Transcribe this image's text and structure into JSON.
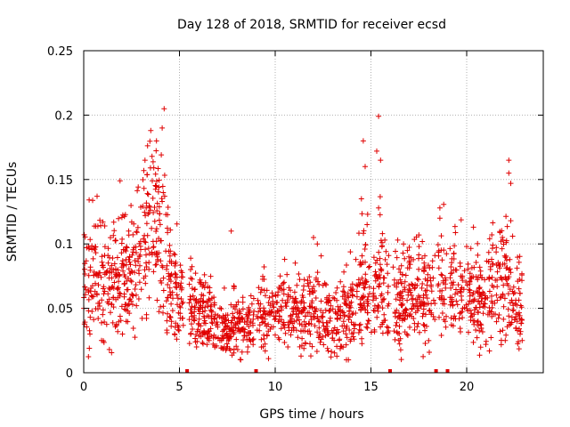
{
  "chart_data": {
    "type": "scatter",
    "title": "Day 128 of 2018, SRMTID for receiver ecsd",
    "xlabel": "GPS time / hours",
    "ylabel": "SRMTID / TECUs",
    "xlim": [
      0,
      24
    ],
    "ylim": [
      0,
      0.25
    ],
    "xticks": [
      0,
      5,
      10,
      15,
      20
    ],
    "xtick_labels": [
      "0",
      "5",
      "10",
      "15",
      "20"
    ],
    "yticks": [
      0,
      0.05,
      0.1,
      0.15,
      0.2,
      0.25
    ],
    "ytick_labels": [
      "0",
      "0.05",
      "0.1",
      "0.15",
      "0.2",
      "0.25"
    ],
    "grid": true,
    "marker": "+",
    "color": "#e00000",
    "point_count_approx": 2000,
    "trend": [
      {
        "x": 0.0,
        "y": 0.065
      },
      {
        "x": 0.5,
        "y": 0.072
      },
      {
        "x": 1.0,
        "y": 0.068
      },
      {
        "x": 1.5,
        "y": 0.075
      },
      {
        "x": 2.0,
        "y": 0.072
      },
      {
        "x": 2.5,
        "y": 0.07
      },
      {
        "x": 3.0,
        "y": 0.09
      },
      {
        "x": 3.5,
        "y": 0.115
      },
      {
        "x": 4.0,
        "y": 0.1
      },
      {
        "x": 4.5,
        "y": 0.065
      },
      {
        "x": 5.0,
        "y": 0.055
      },
      {
        "x": 5.5,
        "y": 0.05
      },
      {
        "x": 6.0,
        "y": 0.048
      },
      {
        "x": 6.5,
        "y": 0.045
      },
      {
        "x": 7.0,
        "y": 0.038
      },
      {
        "x": 7.5,
        "y": 0.032
      },
      {
        "x": 8.0,
        "y": 0.035
      },
      {
        "x": 8.5,
        "y": 0.038
      },
      {
        "x": 9.0,
        "y": 0.042
      },
      {
        "x": 9.5,
        "y": 0.044
      },
      {
        "x": 10.0,
        "y": 0.045
      },
      {
        "x": 10.5,
        "y": 0.048
      },
      {
        "x": 11.0,
        "y": 0.046
      },
      {
        "x": 11.5,
        "y": 0.048
      },
      {
        "x": 12.0,
        "y": 0.047
      },
      {
        "x": 12.5,
        "y": 0.042
      },
      {
        "x": 13.0,
        "y": 0.04
      },
      {
        "x": 13.5,
        "y": 0.042
      },
      {
        "x": 14.0,
        "y": 0.048
      },
      {
        "x": 14.5,
        "y": 0.065
      },
      {
        "x": 15.0,
        "y": 0.062
      },
      {
        "x": 15.5,
        "y": 0.075
      },
      {
        "x": 16.0,
        "y": 0.052
      },
      {
        "x": 16.5,
        "y": 0.052
      },
      {
        "x": 17.0,
        "y": 0.055
      },
      {
        "x": 17.5,
        "y": 0.058
      },
      {
        "x": 18.0,
        "y": 0.055
      },
      {
        "x": 18.5,
        "y": 0.065
      },
      {
        "x": 19.0,
        "y": 0.072
      },
      {
        "x": 19.5,
        "y": 0.062
      },
      {
        "x": 20.0,
        "y": 0.06
      },
      {
        "x": 20.5,
        "y": 0.058
      },
      {
        "x": 21.0,
        "y": 0.06
      },
      {
        "x": 21.5,
        "y": 0.065
      },
      {
        "x": 22.0,
        "y": 0.075
      },
      {
        "x": 22.5,
        "y": 0.06
      },
      {
        "x": 22.8,
        "y": 0.055
      }
    ],
    "outliers": [
      {
        "x": 4.2,
        "y": 0.205
      },
      {
        "x": 4.1,
        "y": 0.19
      },
      {
        "x": 3.8,
        "y": 0.18
      },
      {
        "x": 3.5,
        "y": 0.188
      },
      {
        "x": 3.2,
        "y": 0.165
      },
      {
        "x": 1.9,
        "y": 0.149
      },
      {
        "x": 0.7,
        "y": 0.137
      },
      {
        "x": 1.0,
        "y": 0.117
      },
      {
        "x": 7.7,
        "y": 0.11
      },
      {
        "x": 12.0,
        "y": 0.105
      },
      {
        "x": 12.2,
        "y": 0.1
      },
      {
        "x": 14.6,
        "y": 0.18
      },
      {
        "x": 14.7,
        "y": 0.16
      },
      {
        "x": 14.5,
        "y": 0.135
      },
      {
        "x": 14.8,
        "y": 0.115
      },
      {
        "x": 15.4,
        "y": 0.199
      },
      {
        "x": 15.3,
        "y": 0.172
      },
      {
        "x": 15.5,
        "y": 0.165
      },
      {
        "x": 15.4,
        "y": 0.128
      },
      {
        "x": 15.6,
        "y": 0.108
      },
      {
        "x": 16.4,
        "y": 0.103
      },
      {
        "x": 17.5,
        "y": 0.107
      },
      {
        "x": 18.6,
        "y": 0.128
      },
      {
        "x": 18.6,
        "y": 0.12
      },
      {
        "x": 22.2,
        "y": 0.165
      },
      {
        "x": 22.2,
        "y": 0.155
      },
      {
        "x": 22.3,
        "y": 0.147
      },
      {
        "x": 22.3,
        "y": 0.118
      },
      {
        "x": 22.4,
        "y": 0.106
      },
      {
        "x": 20.0,
        "y": 0.098
      },
      {
        "x": 21.2,
        "y": 0.104
      },
      {
        "x": 22.9,
        "y": 0.025
      },
      {
        "x": 21.0,
        "y": 0.022
      }
    ],
    "baseline_markers": [
      {
        "x": 5.4,
        "y": 0
      },
      {
        "x": 9.0,
        "y": 0
      },
      {
        "x": 16.0,
        "y": 0
      },
      {
        "x": 18.4,
        "y": 0
      },
      {
        "x": 19.0,
        "y": 0
      }
    ],
    "quiet_gaps": [
      [
        5.2,
        5.5
      ],
      [
        8.9,
        9.05
      ],
      [
        15.95,
        16.15
      ],
      [
        18.35,
        18.5
      ],
      [
        18.95,
        19.1
      ]
    ]
  }
}
